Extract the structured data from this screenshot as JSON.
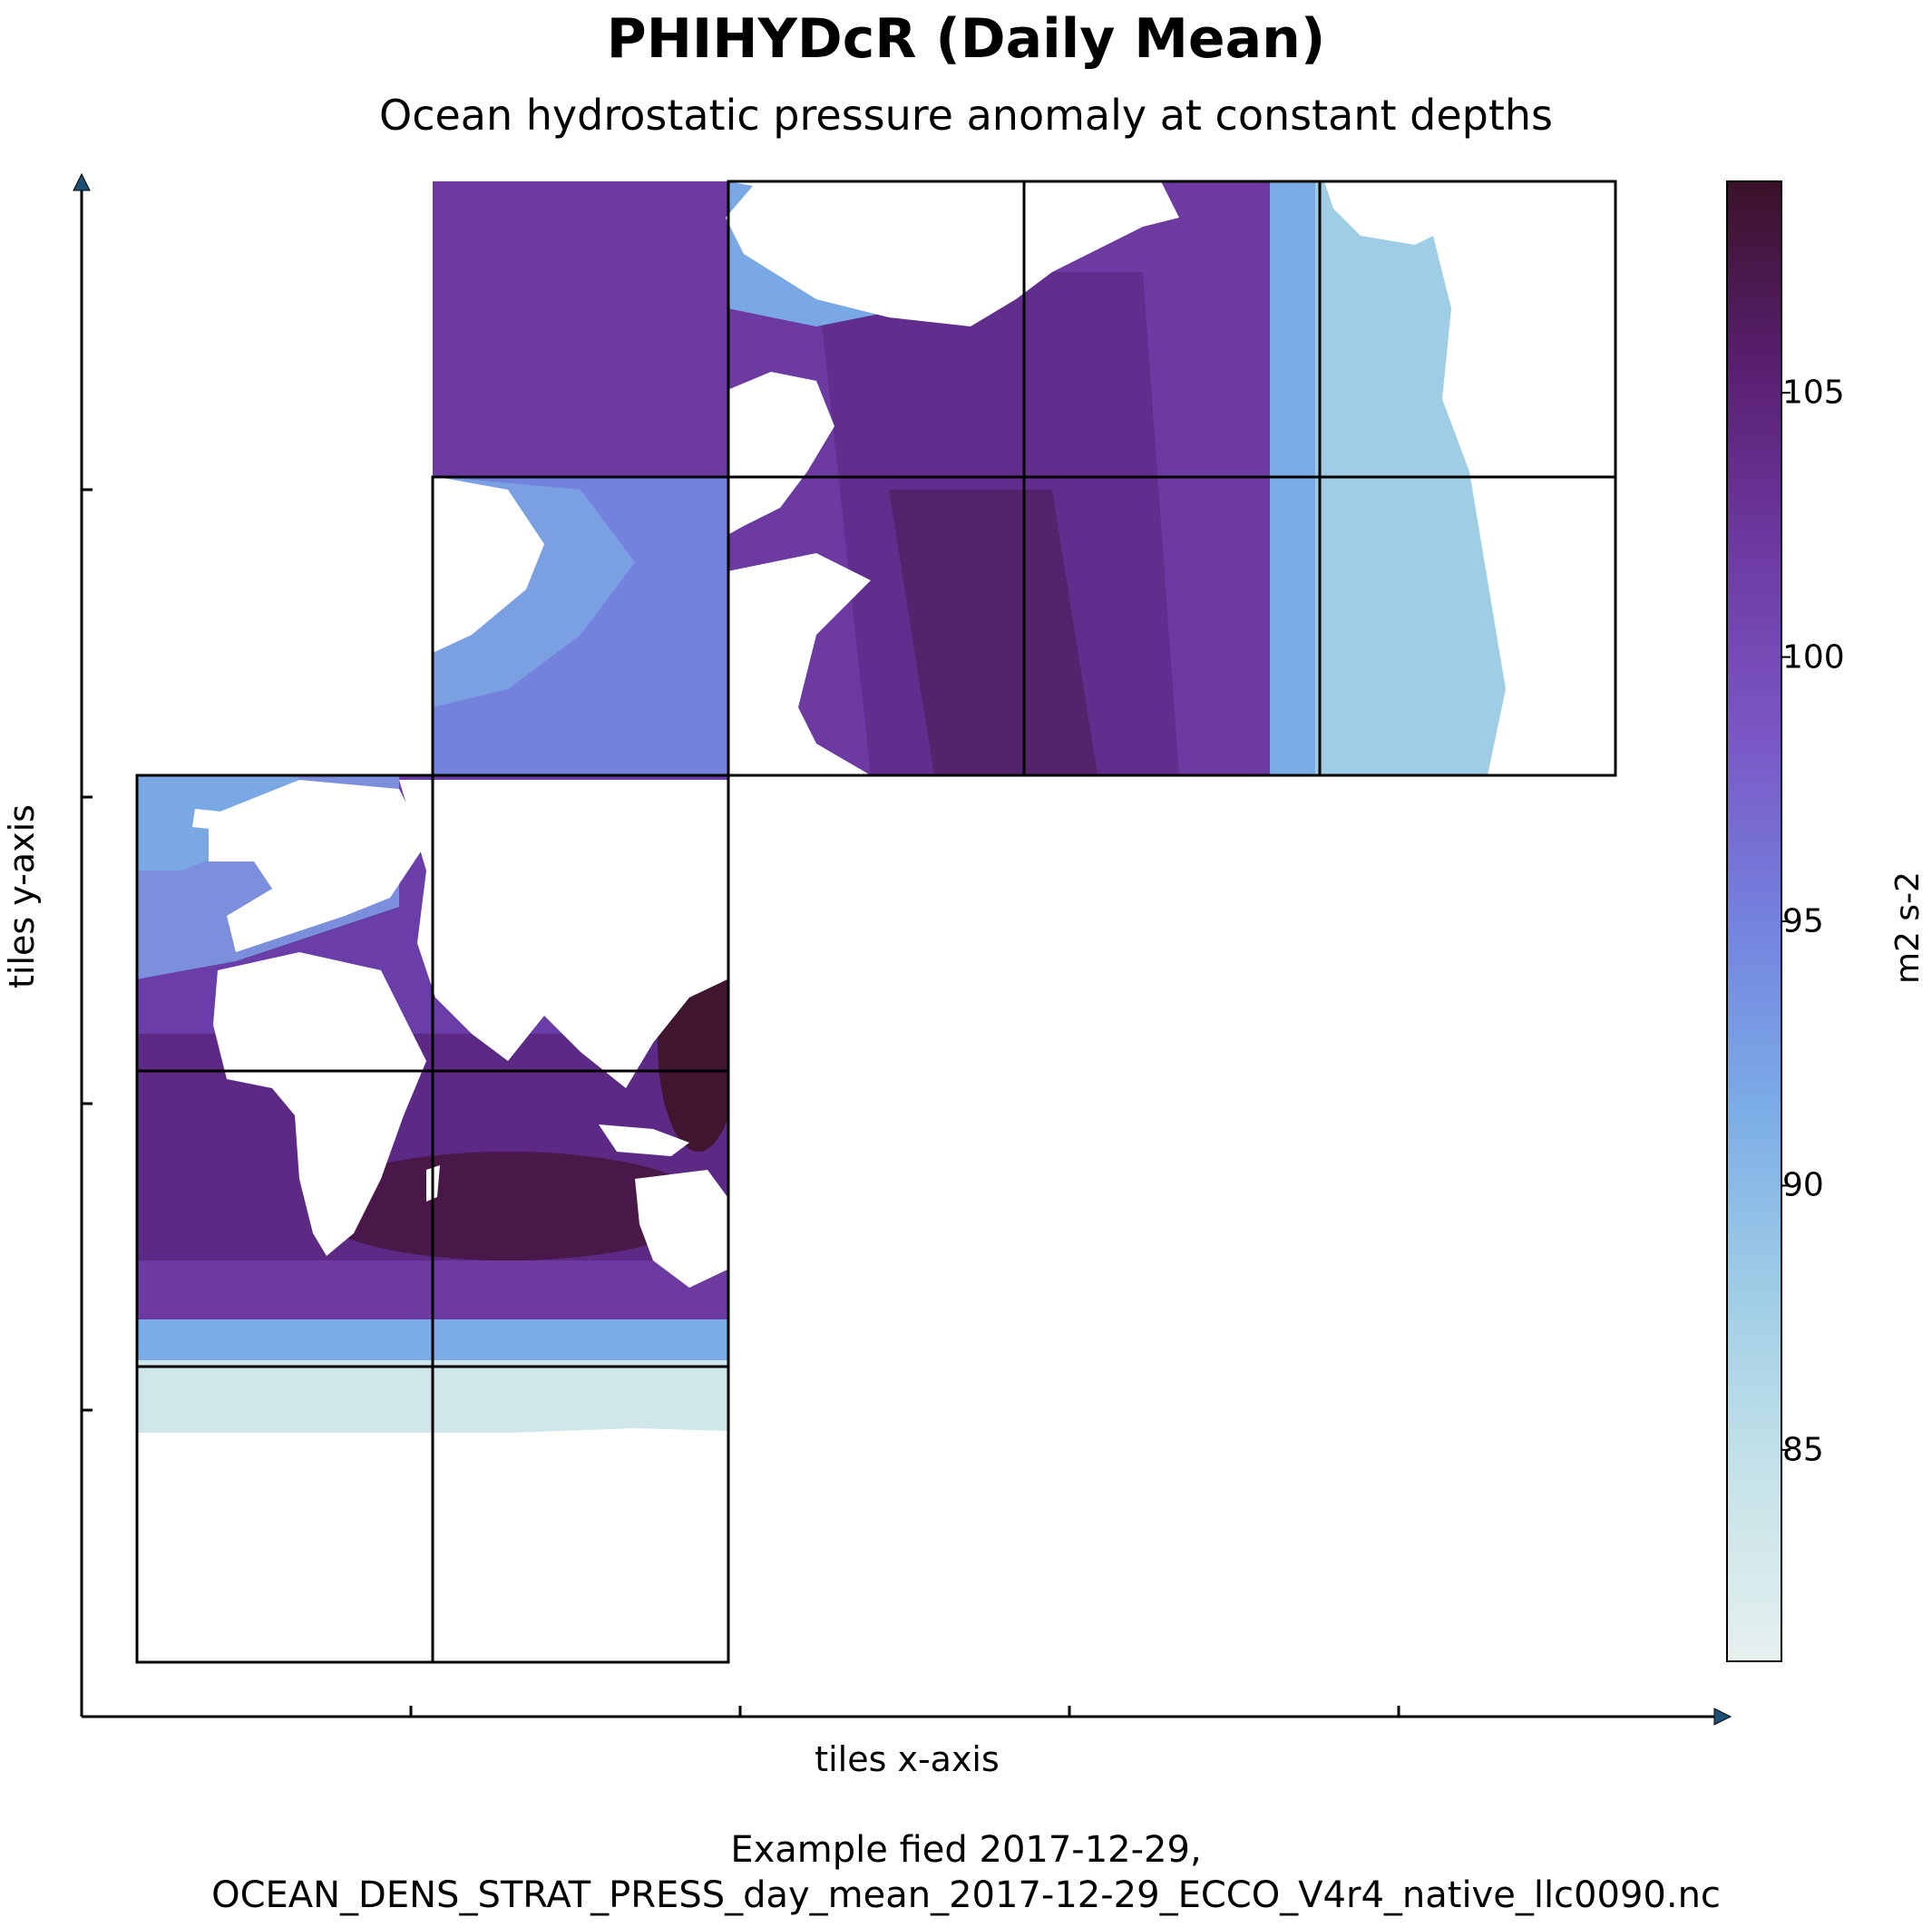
{
  "chart_data": {
    "type": "heatmap",
    "title": "PHIHYDcR (Daily Mean)",
    "subtitle": "Ocean hydrostatic pressure anomaly at constant depths",
    "xlabel": "tiles x-axis",
    "ylabel": "tiles y-axis",
    "caption_line1": "Example fied 2017-12-29,",
    "caption_line2": "OCEAN_DENS_STRAT_PRESS_day_mean_2017-12-29_ECCO_V4r4_native_llc0090.nc",
    "colorbar": {
      "label": "m2 s-2",
      "range": [
        81,
        109
      ],
      "ticks": [
        85,
        90,
        95,
        100,
        105
      ],
      "tick_labels": [
        "85",
        "90",
        "95",
        "100",
        "105"
      ],
      "colormap_stops": [
        "#e6f0ef",
        "#c6e3e9",
        "#9fcde6",
        "#7bace6",
        "#7482de",
        "#7a57c4",
        "#6d3aa2",
        "#591f70",
        "#3a1228"
      ]
    },
    "grid": false,
    "layout": "LLC90 tiled world ocean mosaic: 2 columns x 3 rows lower-left, 3 columns x 2 rows upper-right"
  },
  "colors": {
    "low": "#e6f0ef",
    "high": "#3a1228",
    "axis": "#000000",
    "arrow_head": "#1f4e79"
  }
}
